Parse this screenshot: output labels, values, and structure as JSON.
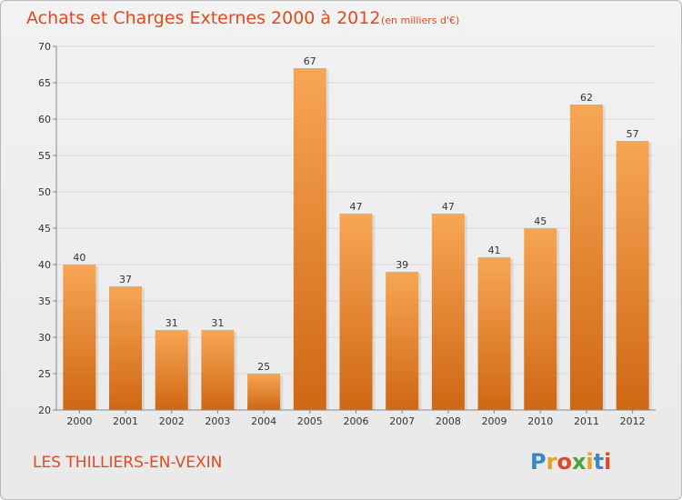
{
  "title": "Achats et Charges Externes 2000 à 2012",
  "unit_label": "(en milliers d'€)",
  "commune": "LES THILLIERS-EN-VEXIN",
  "logo": {
    "letters": [
      "P",
      "r",
      "o",
      "x",
      "i",
      "t",
      "i"
    ],
    "colors": [
      "#3a86c8",
      "#e8a21a",
      "#e04a20",
      "#4aa33a",
      "#e8a21a",
      "#3a86c8",
      "#e04a20"
    ]
  },
  "colors": {
    "bar_top": "#f7a655",
    "bar_bottom": "#cf6713",
    "title": "#e04a20",
    "grid": "#d8d8d8"
  },
  "chart_data": {
    "type": "bar",
    "categories": [
      "2000",
      "2001",
      "2002",
      "2003",
      "2004",
      "2005",
      "2006",
      "2007",
      "2008",
      "2009",
      "2010",
      "2011",
      "2012"
    ],
    "values": [
      40,
      37,
      31,
      31,
      25,
      67,
      47,
      39,
      47,
      41,
      45,
      62,
      57
    ],
    "ylim": [
      20,
      70
    ],
    "yticks": [
      20,
      25,
      30,
      35,
      40,
      45,
      50,
      55,
      60,
      65,
      70
    ],
    "grid": true,
    "title": "Achats et Charges Externes 2000 à 2012",
    "xlabel": "",
    "ylabel": ""
  }
}
